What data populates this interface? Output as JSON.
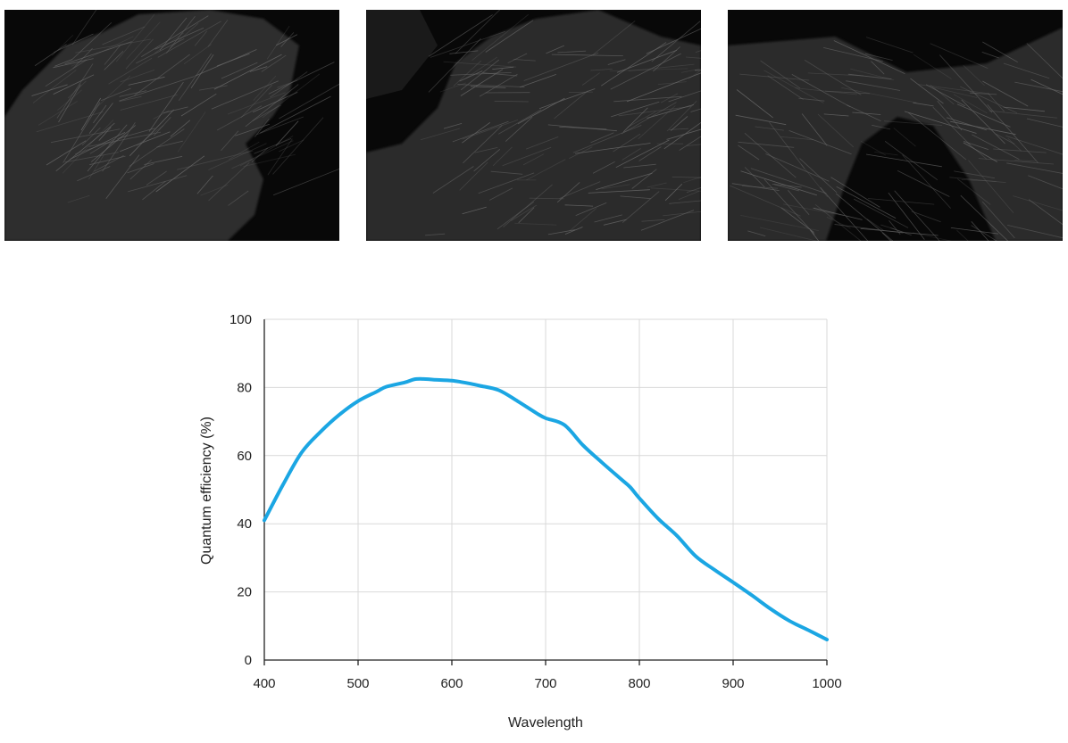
{
  "images": [
    {
      "name": "micrograph-1",
      "description_icon": "fluorescence-micrograph"
    },
    {
      "name": "micrograph-2",
      "description_icon": "fluorescence-micrograph"
    },
    {
      "name": "micrograph-3",
      "description_icon": "fluorescence-micrograph"
    }
  ],
  "chart_data": {
    "type": "line",
    "title": "",
    "xlabel": "Wavelength",
    "ylabel": "Quantum efficiency (%)",
    "xlim": [
      400,
      1000
    ],
    "ylim": [
      0,
      100
    ],
    "xticks": [
      400,
      500,
      600,
      700,
      800,
      900,
      1000
    ],
    "yticks": [
      0,
      20,
      40,
      60,
      80,
      100
    ],
    "grid": true,
    "legend": "none",
    "line_color": "#1ba6e3",
    "series": [
      {
        "x": [
          400,
          420,
          440,
          460,
          480,
          500,
          520,
          530,
          550,
          560,
          570,
          580,
          600,
          610,
          620,
          630,
          650,
          670,
          690,
          700,
          720,
          740,
          760,
          780,
          790,
          800,
          820,
          840,
          860,
          880,
          900,
          920,
          940,
          960,
          980,
          1000
        ],
        "y": [
          41,
          51.5,
          61,
          67,
          72,
          76,
          78.8,
          80.2,
          81.5,
          82.4,
          82.5,
          82.3,
          82,
          81.6,
          81.1,
          80.5,
          79.2,
          76,
          72.5,
          71,
          69,
          63,
          58,
          53.2,
          50.8,
          47.5,
          41.5,
          36.5,
          30.5,
          26.5,
          22.8,
          19,
          15,
          11.5,
          8.8,
          6
        ]
      }
    ]
  }
}
